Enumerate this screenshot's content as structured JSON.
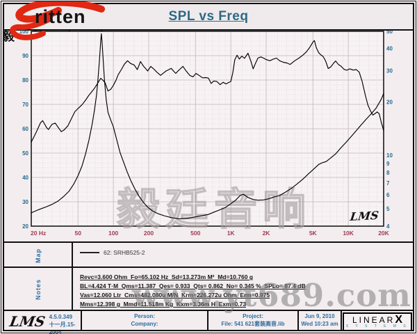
{
  "header": {
    "logo_text": "ritten",
    "logo_cn": "毅 廷 音 响",
    "title": "SPL vs Freq"
  },
  "chart_data": {
    "type": "line",
    "title": "SPL vs Freq",
    "grid": "on",
    "x_axis": {
      "label": "Hz",
      "scale": "log",
      "min": 20,
      "max": 20000,
      "tick_values": [
        20,
        50,
        100,
        200,
        500,
        1000,
        2000,
        5000,
        10000,
        20000
      ],
      "ticks": [
        "20  Hz",
        "50",
        "100",
        "200",
        "500",
        "1K",
        "2K",
        "5K",
        "10K",
        "20K"
      ]
    },
    "y_left": {
      "label": "dB SPL",
      "scale": "linear",
      "min": 20,
      "max": 100,
      "ticks": [
        100,
        90,
        80,
        70,
        60,
        50,
        40,
        30,
        20
      ]
    },
    "y_right": {
      "label": "Ohm",
      "scale": "log",
      "min": 4,
      "max": 50,
      "ticks": [
        50,
        40,
        30,
        20,
        10,
        9,
        8,
        7,
        6,
        5,
        4
      ]
    },
    "lms_mark": "LMS",
    "series": [
      {
        "name": "spl",
        "axis": "left",
        "unit": "dB",
        "points": [
          [
            20,
            54.5
          ],
          [
            22,
            58.5
          ],
          [
            24,
            62.5
          ],
          [
            25,
            63.3
          ],
          [
            27,
            60.5
          ],
          [
            28,
            59.7
          ],
          [
            30,
            61.8
          ],
          [
            32,
            62.3
          ],
          [
            34,
            60.5
          ],
          [
            36,
            58.8
          ],
          [
            38,
            59.5
          ],
          [
            41,
            61.2
          ],
          [
            44,
            64.2
          ],
          [
            47,
            67.0
          ],
          [
            50,
            68.3
          ],
          [
            54,
            69.8
          ],
          [
            58,
            71.7
          ],
          [
            62,
            73.8
          ],
          [
            66,
            75.4
          ],
          [
            69,
            76.6
          ],
          [
            73,
            78.4
          ],
          [
            78,
            80.7
          ],
          [
            81,
            80.0
          ],
          [
            85,
            78.9
          ],
          [
            90,
            75.5
          ],
          [
            95,
            76.2
          ],
          [
            100,
            77.8
          ],
          [
            105,
            79.8
          ],
          [
            110,
            82.2
          ],
          [
            117,
            84.3
          ],
          [
            124,
            86.5
          ],
          [
            132,
            87.9
          ],
          [
            140,
            86.8
          ],
          [
            150,
            86.2
          ],
          [
            160,
            84.3
          ],
          [
            170,
            87.6
          ],
          [
            181,
            85.6
          ],
          [
            190,
            84.5
          ],
          [
            196,
            83.7
          ],
          [
            208,
            85.6
          ],
          [
            220,
            84.6
          ],
          [
            235,
            83.2
          ],
          [
            252,
            81.9
          ],
          [
            266,
            82.8
          ],
          [
            281,
            83.7
          ],
          [
            300,
            84.4
          ],
          [
            311,
            84.8
          ],
          [
            326,
            83.6
          ],
          [
            340,
            82.7
          ],
          [
            365,
            84.3
          ],
          [
            391,
            85.6
          ],
          [
            418,
            83.6
          ],
          [
            447,
            81.9
          ],
          [
            476,
            81.3
          ],
          [
            505,
            82.7
          ],
          [
            540,
            81.8
          ],
          [
            575,
            80.9
          ],
          [
            610,
            81.0
          ],
          [
            645,
            80.8
          ],
          [
            680,
            78.6
          ],
          [
            715,
            79.6
          ],
          [
            760,
            79.4
          ],
          [
            810,
            78.1
          ],
          [
            860,
            79.1
          ],
          [
            910,
            78.4
          ],
          [
            960,
            79.0
          ],
          [
            1000,
            79.4
          ],
          [
            1040,
            83.0
          ],
          [
            1080,
            88.3
          ],
          [
            1130,
            90.2
          ],
          [
            1180,
            88.6
          ],
          [
            1240,
            89.8
          ],
          [
            1310,
            88.9
          ],
          [
            1400,
            91.0
          ],
          [
            1480,
            87.8
          ],
          [
            1550,
            84.6
          ],
          [
            1620,
            86.8
          ],
          [
            1700,
            89.0
          ],
          [
            1800,
            89.5
          ],
          [
            1900,
            89.0
          ],
          [
            2000,
            88.4
          ],
          [
            2150,
            87.9
          ],
          [
            2300,
            88.6
          ],
          [
            2450,
            89.0
          ],
          [
            2600,
            87.9
          ],
          [
            2800,
            87.3
          ],
          [
            3000,
            87.0
          ],
          [
            3200,
            86.4
          ],
          [
            3500,
            87.9
          ],
          [
            3800,
            89.0
          ],
          [
            4100,
            90.2
          ],
          [
            4400,
            91.6
          ],
          [
            4700,
            93.4
          ],
          [
            5000,
            95.6
          ],
          [
            5150,
            96.2
          ],
          [
            5350,
            93.2
          ],
          [
            5600,
            91.2
          ],
          [
            5850,
            90.3
          ],
          [
            6100,
            89.7
          ],
          [
            6400,
            87.9
          ],
          [
            6750,
            84.7
          ],
          [
            7100,
            85.4
          ],
          [
            7500,
            86.9
          ],
          [
            7800,
            87.8
          ],
          [
            8200,
            86.5
          ],
          [
            8700,
            85.6
          ],
          [
            9200,
            84.4
          ],
          [
            9700,
            84.0
          ],
          [
            10300,
            84.6
          ],
          [
            11000,
            84.1
          ],
          [
            11700,
            84.3
          ],
          [
            12400,
            83.2
          ],
          [
            13100,
            79.6
          ],
          [
            14000,
            73.6
          ],
          [
            14700,
            69.7
          ],
          [
            15500,
            67.2
          ],
          [
            16200,
            65.6
          ],
          [
            17000,
            66.3
          ],
          [
            17600,
            66.9
          ],
          [
            18300,
            66.2
          ],
          [
            19100,
            62.6
          ],
          [
            20000,
            59.3
          ]
        ]
      },
      {
        "name": "impedance",
        "axis": "right",
        "unit": "Ohm",
        "points": [
          [
            20,
            4.75
          ],
          [
            23,
            4.95
          ],
          [
            26,
            5.1
          ],
          [
            30,
            5.3
          ],
          [
            34,
            5.55
          ],
          [
            38,
            5.9
          ],
          [
            42,
            6.3
          ],
          [
            46,
            6.9
          ],
          [
            50,
            7.7
          ],
          [
            54,
            8.7
          ],
          [
            58,
            10.2
          ],
          [
            62,
            12.2
          ],
          [
            66,
            15.0
          ],
          [
            69,
            18.0
          ],
          [
            72,
            22.0
          ],
          [
            74,
            27.0
          ],
          [
            76,
            34.0
          ],
          [
            78,
            44.0
          ],
          [
            79,
            48.5
          ],
          [
            80,
            44.5
          ],
          [
            82,
            34.0
          ],
          [
            84,
            26.5
          ],
          [
            87,
            20.5
          ],
          [
            90,
            17.5
          ],
          [
            95,
            15.8
          ],
          [
            100,
            14.5
          ],
          [
            107,
            12.2
          ],
          [
            114,
            10.4
          ],
          [
            122,
            9.2
          ],
          [
            131,
            8.1
          ],
          [
            141,
            7.2
          ],
          [
            152,
            6.5
          ],
          [
            165,
            5.9
          ],
          [
            180,
            5.45
          ],
          [
            197,
            5.1
          ],
          [
            215,
            4.88
          ],
          [
            240,
            4.7
          ],
          [
            270,
            4.58
          ],
          [
            310,
            4.47
          ],
          [
            360,
            4.4
          ],
          [
            420,
            4.42
          ],
          [
            490,
            4.5
          ],
          [
            560,
            4.57
          ],
          [
            640,
            4.65
          ],
          [
            720,
            4.8
          ],
          [
            810,
            4.95
          ],
          [
            900,
            5.1
          ],
          [
            1000,
            5.35
          ],
          [
            1100,
            5.6
          ],
          [
            1200,
            5.95
          ],
          [
            1280,
            6.05
          ],
          [
            1400,
            5.8
          ],
          [
            1550,
            5.65
          ],
          [
            1700,
            5.6
          ],
          [
            1900,
            5.62
          ],
          [
            2100,
            5.7
          ],
          [
            2350,
            5.85
          ],
          [
            2600,
            5.95
          ],
          [
            2900,
            6.2
          ],
          [
            3250,
            6.5
          ],
          [
            3650,
            6.9
          ],
          [
            4100,
            7.35
          ],
          [
            4600,
            7.9
          ],
          [
            5100,
            8.4
          ],
          [
            5600,
            8.9
          ],
          [
            6000,
            9.1
          ],
          [
            6500,
            9.25
          ],
          [
            7100,
            9.7
          ],
          [
            7800,
            10.2
          ],
          [
            8600,
            11.0
          ],
          [
            9500,
            11.8
          ],
          [
            10500,
            12.7
          ],
          [
            11600,
            13.7
          ],
          [
            12800,
            14.8
          ],
          [
            14100,
            15.9
          ],
          [
            15600,
            17.1
          ],
          [
            17200,
            18.4
          ],
          [
            19000,
            20.6
          ],
          [
            20000,
            22.3
          ]
        ]
      }
    ]
  },
  "map": {
    "label": "Map",
    "legend": "62: SRHB525-2"
  },
  "notes": {
    "label": "Notes",
    "lines": [
      "Revc=3.600 Ohm  Fo=65.102 Hz  Sd=13.273m M²  Md=10.760 g",
      "BL=4.424 T·M  Qms=11.387  Qes= 0.933  Qts= 0.862  No= 0.345 %  SPLo= 87.4 dB",
      "Vas=12.060 Ltr  Cms=482.080u M/N  Krm=226.272u Ohm  Erm=0.975",
      "Mms=12.398 g  Mmd=11.518m Kg  Kxm=3.36m H  Exm=0.73"
    ]
  },
  "footer": {
    "lms": "LMS",
    "version": "4.5.0.349",
    "version_date": "十一月.15-2004",
    "person": "Person:",
    "company": "Company:",
    "project": "Project:",
    "file": "File: 541  621套装高音.lib",
    "date": "Jun  9, 2010",
    "time": "Wed 10:23 am",
    "brand_linear": "LINEAR",
    "brand_x": "X",
    "brand_systems": "S Y S T E M S"
  },
  "watermarks": {
    "plot": "毅廷音响",
    "site": "www.yt689.com"
  },
  "colors": {
    "title_blue": "#2d6985",
    "axis_blue": "#26688f",
    "axis_red": "#9e3a52",
    "logo_red": "#e02813",
    "footer_blue": "#2d6ea0",
    "curve": "#000000",
    "page_bg": "#f3edef",
    "plot_bg": "#f7f2f3"
  }
}
